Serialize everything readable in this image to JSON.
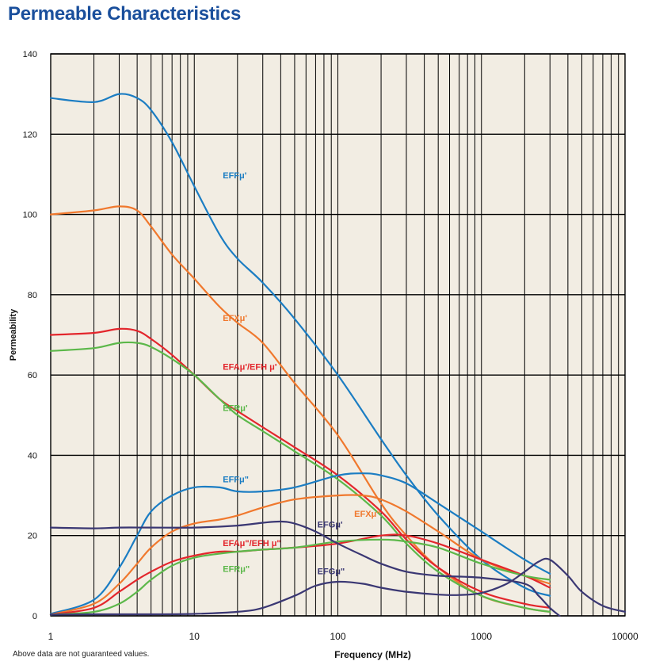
{
  "title": "Permeable Characteristics",
  "footnote": "Above data are not guaranteed values.",
  "chart_data": {
    "type": "line",
    "xlabel": "Frequency (MHz)",
    "ylabel": "Permeability",
    "x_scale": "log",
    "xlim": [
      1,
      10000
    ],
    "ylim": [
      0,
      140
    ],
    "x_ticks": [
      "1",
      "10",
      "100",
      "1000",
      "10000"
    ],
    "y_ticks": [
      "0",
      "20",
      "40",
      "60",
      "80",
      "100",
      "120",
      "140"
    ],
    "grid": true,
    "colors": {
      "background": "#f2ede3",
      "grid": "#000000",
      "EFF": "#1b7dc3",
      "EFX": "#f0782d",
      "EFA": "#e3262c",
      "EFR": "#5cb84a",
      "EFG": "#3a3773"
    },
    "series": [
      {
        "name": "EFFμ'",
        "color": "#1b7dc3",
        "x": [
          1,
          2,
          3,
          4,
          5,
          7,
          10,
          15,
          20,
          30,
          50,
          100,
          200,
          300,
          500,
          1000,
          2000,
          3000
        ],
        "y": [
          129,
          128,
          130,
          129,
          126,
          118,
          107,
          95,
          89,
          83,
          74,
          60,
          44,
          35,
          25,
          14,
          7,
          5
        ]
      },
      {
        "name": "EFXμ'",
        "color": "#f0782d",
        "x": [
          1,
          2,
          3,
          4,
          5,
          7,
          10,
          15,
          20,
          30,
          50,
          100,
          200,
          300,
          500,
          1000,
          2000,
          3000
        ],
        "y": [
          100,
          101,
          102,
          101,
          97,
          90,
          84,
          77,
          73,
          68,
          58,
          45,
          28,
          20,
          12,
          5,
          2,
          1
        ]
      },
      {
        "name": "EFAμ'/EFH μ'",
        "color": "#e3262c",
        "x": [
          1,
          2,
          3,
          4,
          5,
          7,
          10,
          15,
          20,
          30,
          50,
          100,
          200,
          300,
          500,
          1000,
          2000,
          3000
        ],
        "y": [
          70,
          70.5,
          71.5,
          71,
          69,
          65,
          60,
          54,
          51,
          47,
          42,
          35,
          26,
          19,
          12,
          6,
          3,
          2
        ]
      },
      {
        "name": "EFRμ'",
        "color": "#5cb84a",
        "x": [
          1,
          2,
          3,
          4,
          5,
          7,
          10,
          15,
          20,
          30,
          50,
          100,
          200,
          300,
          500,
          1000,
          2000,
          3000
        ],
        "y": [
          66,
          66.7,
          68,
          68,
          67,
          64,
          60,
          54,
          50,
          46,
          41,
          34,
          25,
          18,
          11,
          5,
          2,
          1
        ]
      },
      {
        "name": "EFFμ\"",
        "color": "#1b7dc3",
        "x": [
          1,
          2,
          3,
          4,
          5,
          7,
          10,
          15,
          20,
          30,
          50,
          100,
          150,
          200,
          300,
          500,
          1000,
          2000,
          3000
        ],
        "y": [
          0.5,
          4,
          12,
          20,
          26,
          30,
          32,
          32,
          31,
          31,
          32,
          35,
          35.5,
          35,
          33,
          28,
          21,
          14,
          10.5
        ]
      },
      {
        "name": "EFXμ\"",
        "color": "#f0782d",
        "x": [
          1,
          2,
          3,
          4,
          5,
          7,
          10,
          15,
          20,
          30,
          50,
          100,
          150,
          200,
          300,
          500,
          1000,
          2000,
          3000
        ],
        "y": [
          0.3,
          3,
          8,
          13,
          17,
          21,
          23,
          24,
          25,
          27,
          29,
          30,
          30,
          29,
          26,
          21,
          14,
          10,
          8
        ]
      },
      {
        "name": "EFAμ\"/EFH μ\"",
        "color": "#e3262c",
        "x": [
          1,
          2,
          3,
          4,
          5,
          7,
          10,
          15,
          20,
          30,
          50,
          100,
          200,
          300,
          500,
          1000,
          2000,
          3000
        ],
        "y": [
          0.3,
          2,
          6,
          9,
          11,
          13.5,
          15,
          16,
          16,
          16.5,
          17,
          18,
          20,
          20,
          18,
          14,
          10,
          7
        ]
      },
      {
        "name": "EFRμ\"",
        "color": "#5cb84a",
        "x": [
          1,
          2,
          3,
          4,
          5,
          7,
          10,
          15,
          20,
          30,
          50,
          100,
          200,
          300,
          500,
          1000,
          2000,
          3000
        ],
        "y": [
          0.3,
          1,
          3,
          6,
          9,
          12.5,
          14.5,
          15.5,
          16,
          16.5,
          17,
          18.5,
          19,
          18.5,
          17,
          13,
          10,
          9
        ]
      },
      {
        "name": "EFGμ'",
        "color": "#3a3773",
        "x": [
          1,
          2,
          3,
          5,
          10,
          20,
          30,
          40,
          50,
          70,
          100,
          150,
          200,
          300,
          500,
          1000,
          2000,
          2500,
          3000,
          3500
        ],
        "y": [
          22,
          21.8,
          22,
          22,
          22,
          22.5,
          23.2,
          23.5,
          23,
          21,
          18,
          15,
          13,
          11,
          10,
          9.5,
          8,
          5,
          2,
          0
        ]
      },
      {
        "name": "EFGμ\"",
        "color": "#3a3773",
        "x": [
          1,
          2,
          3,
          5,
          10,
          20,
          30,
          50,
          70,
          100,
          150,
          200,
          300,
          500,
          700,
          1000,
          1500,
          2000,
          2500,
          3000,
          4000,
          5000,
          7000,
          10000
        ],
        "y": [
          0.3,
          0.4,
          0.4,
          0.4,
          0.5,
          1,
          2,
          5,
          7.5,
          8.5,
          8,
          7,
          6,
          5.3,
          5.2,
          5.7,
          8,
          11,
          13.5,
          14,
          10,
          6,
          2.5,
          1
        ]
      }
    ],
    "annotations": [
      {
        "text": "EFFμ'",
        "color": "#1b7dc3",
        "x": 15.8,
        "y": 109
      },
      {
        "text": "EFXμ'",
        "color": "#f0782d",
        "x": 15.8,
        "y": 73.5
      },
      {
        "text": "EFAμ'/EFH μ'",
        "color": "#e3262c",
        "x": 15.8,
        "y": 61.3
      },
      {
        "text": "EFRμ'",
        "color": "#5cb84a",
        "x": 15.8,
        "y": 51
      },
      {
        "text": "EFFμ\"",
        "color": "#1b7dc3",
        "x": 15.8,
        "y": 33.3
      },
      {
        "text": "EFAμ\"/EFH μ\"",
        "color": "#e3262c",
        "x": 15.8,
        "y": 17.4
      },
      {
        "text": "EFRμ\"",
        "color": "#5cb84a",
        "x": 15.8,
        "y": 11
      },
      {
        "text": "EFGμ'",
        "color": "#3a3773",
        "x": 72,
        "y": 22
      },
      {
        "text": "EFXμ\"",
        "color": "#f0782d",
        "x": 130,
        "y": 24.7
      },
      {
        "text": "EFGμ\"",
        "color": "#3a3773",
        "x": 72,
        "y": 10.4
      }
    ]
  }
}
